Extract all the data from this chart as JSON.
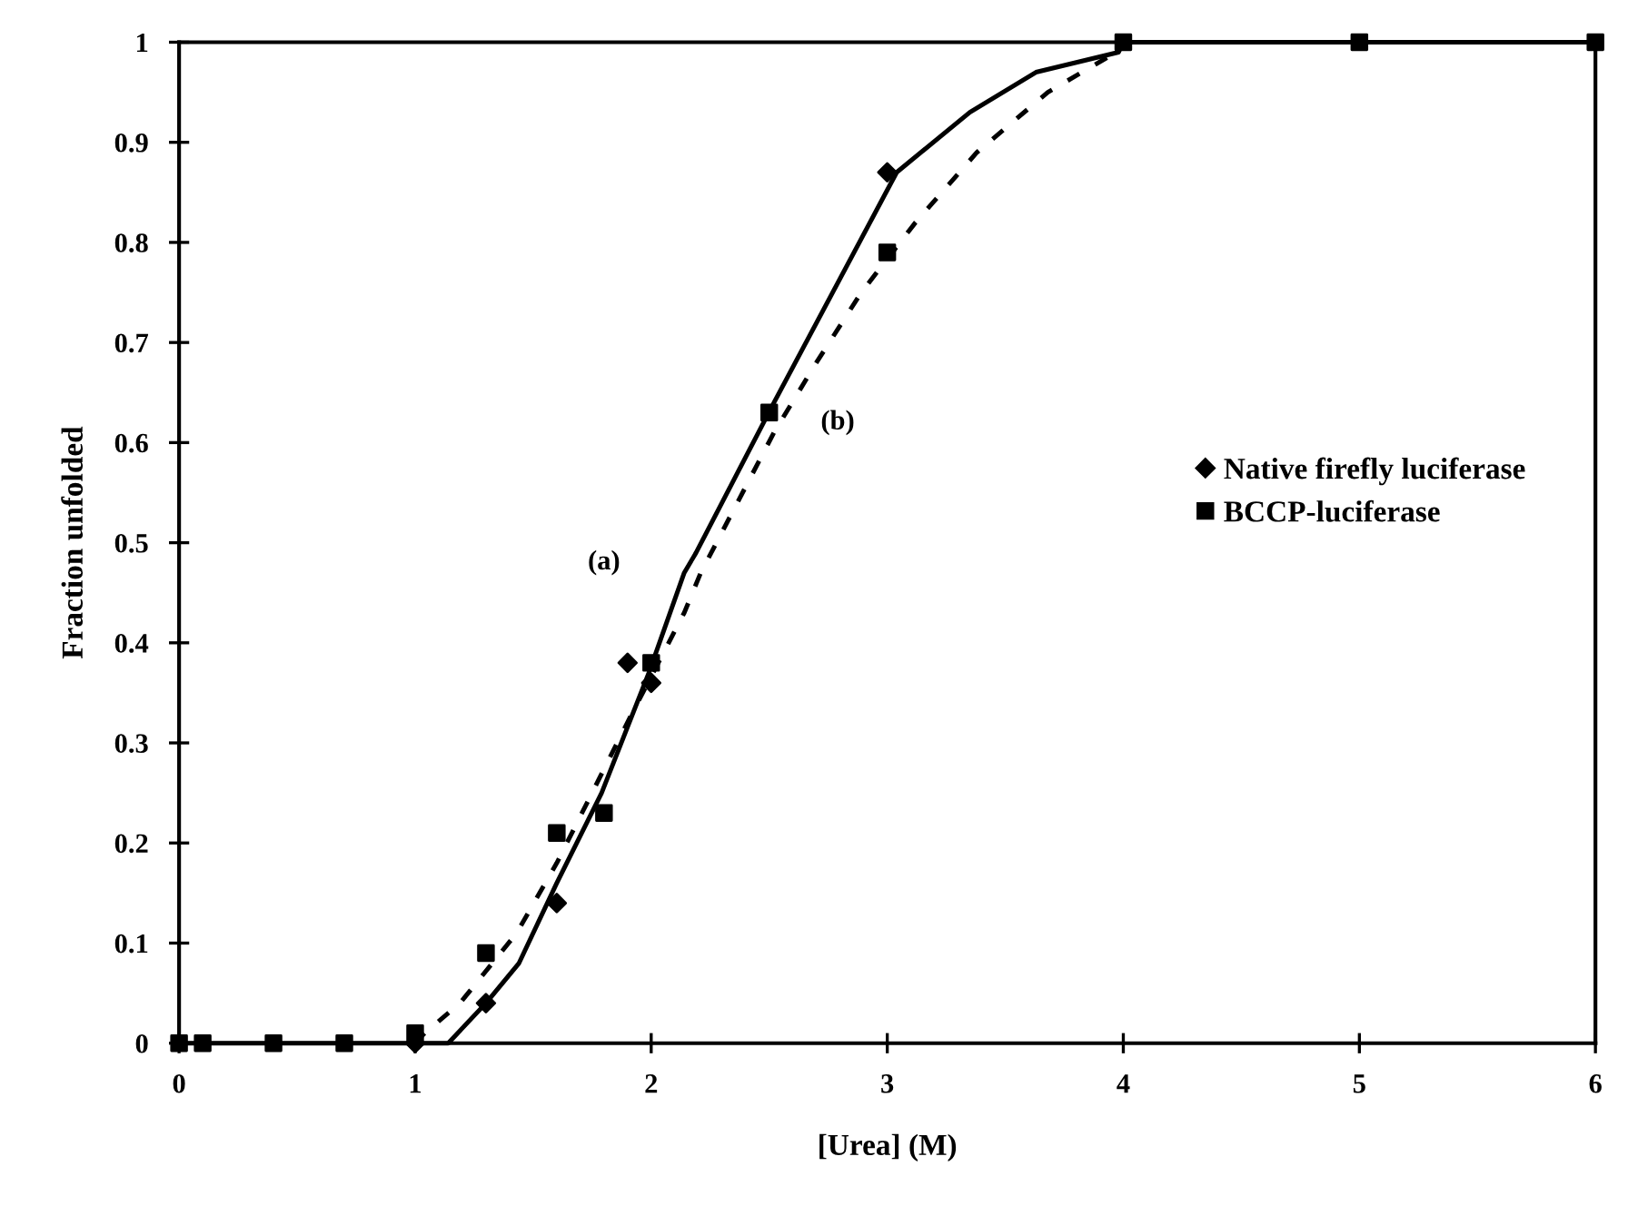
{
  "chart_data": {
    "type": "scatter",
    "xlabel": "[Urea] (M)",
    "ylabel": "Fraction unfolded",
    "xlim": [
      0,
      6
    ],
    "ylim": [
      0,
      1
    ],
    "xticks": [
      0,
      1,
      2,
      3,
      4,
      5,
      6
    ],
    "yticks": [
      0,
      {
        "value": 0.1,
        "label": "0.1"
      },
      {
        "value": 0.2,
        "label": "0.2"
      },
      {
        "value": 0.3,
        "label": "0.3"
      },
      {
        "value": 0.4,
        "label": "0.4"
      },
      {
        "value": 0.5,
        "label": "0.5"
      },
      {
        "value": 0.6,
        "label": "0.6"
      },
      {
        "value": 0.7,
        "label": "0.7"
      },
      {
        "value": 0.8,
        "label": "0.8"
      },
      {
        "value": 0.9,
        "label": "0.9"
      },
      1
    ],
    "grid": false,
    "legend": "right",
    "series": [
      {
        "name": "Native firefly luciferase",
        "marker": "diamond",
        "color": "#000000",
        "x": [
          1.0,
          1.3,
          1.6,
          1.9,
          2.0,
          3.0
        ],
        "values": [
          0,
          0.04,
          0.14,
          0.38,
          0.36,
          0.87
        ]
      },
      {
        "name": "BCCP-luciferase",
        "marker": "square",
        "color": "#000000",
        "x": [
          0,
          0.1,
          0.4,
          0.7,
          1.0,
          1.3,
          1.6,
          1.8,
          2.0,
          2.5,
          3.0,
          4.0,
          5.0,
          6.0
        ],
        "values": [
          0,
          0,
          0,
          0,
          0.01,
          0.09,
          0.21,
          0.23,
          0.38,
          0.63,
          0.79,
          1.0,
          1.0,
          1.0
        ]
      },
      {
        "type": "line",
        "line_style": "solid",
        "color": "#000000",
        "x": [
          0,
          1.0,
          1.14,
          1.3,
          1.44,
          1.6,
          1.79,
          1.99,
          2.14,
          2.19,
          2.52,
          3.04,
          3.35,
          3.63,
          3.98,
          4.0,
          6.0
        ],
        "values": [
          0,
          0,
          0,
          0.04,
          0.08,
          0.16,
          0.25,
          0.37,
          0.47,
          0.49,
          0.64,
          0.87,
          0.93,
          0.97,
          0.99,
          1.0,
          1.0
        ]
      },
      {
        "type": "line",
        "line_style": "dashed",
        "color": "#000000",
        "x": [
          1.0,
          1.04,
          1.19,
          1.43,
          1.6,
          1.92,
          2.14,
          2.21,
          2.52,
          2.7,
          2.89,
          3.12,
          3.38,
          3.68,
          3.97,
          4.0
        ],
        "values": [
          0,
          0.01,
          0.04,
          0.11,
          0.18,
          0.33,
          0.43,
          0.47,
          0.61,
          0.68,
          0.75,
          0.82,
          0.89,
          0.95,
          0.99,
          1.0
        ]
      }
    ],
    "annotations": [
      "(a)",
      "(b)"
    ]
  }
}
